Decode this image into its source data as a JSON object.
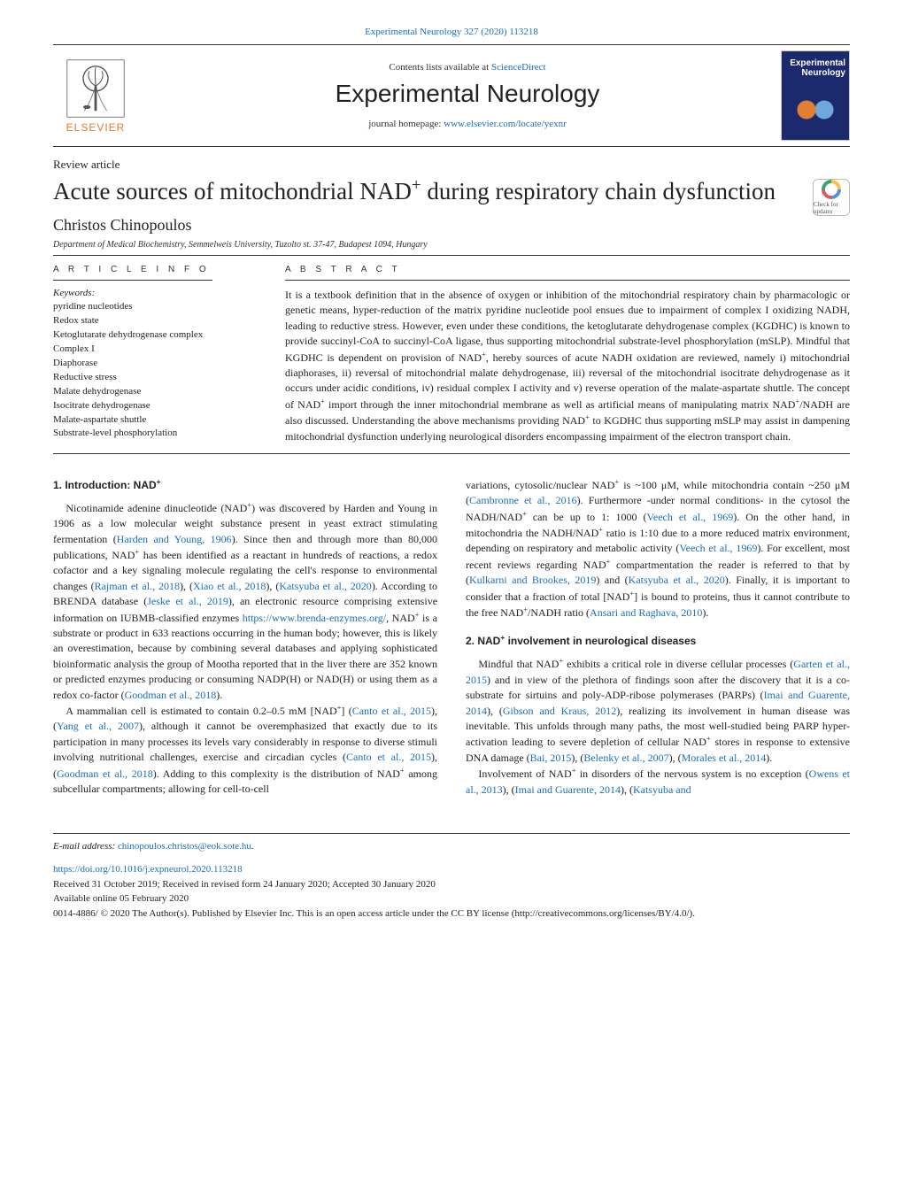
{
  "journal": {
    "header_citation": "Experimental Neurology 327 (2020) 113218",
    "contents_prefix": "Contents lists available at ",
    "contents_link_text": "ScienceDirect",
    "title": "Experimental Neurology",
    "homepage_prefix": "journal homepage: ",
    "homepage_link": "www.elsevier.com/locate/yexnr",
    "publisher_name": "ELSEVIER",
    "cover_title_line1": "Experimental",
    "cover_title_line2": "Neurology"
  },
  "article": {
    "type": "Review article",
    "title_html": "Acute sources of mitochondrial NAD<sup class='plus'>+</sup> during respiratory chain dysfunction",
    "author": "Christos Chinopoulos",
    "affiliation": "Department of Medical Biochemistry, Semmelweis University, Tuzolto st. 37-47, Budapest 1094, Hungary",
    "crossmark_label": "Check for updates"
  },
  "info": {
    "article_info_label": "A R T I C L E  I N F O",
    "abstract_label": "A B S T R A C T",
    "keywords_head": "Keywords:",
    "keywords": [
      "pyridine nucleotides",
      "Redox state",
      "Ketoglutarate dehydrogenase complex",
      "Complex I",
      "Diaphorase",
      "Reductive stress",
      "Malate dehydrogenase",
      "Isocitrate dehydrogenase",
      "Malate-aspartate shuttle",
      "Substrate-level phosphorylation"
    ],
    "abstract_html": "It is a textbook definition that in the absence of oxygen or inhibition of the mitochondrial respiratory chain by pharmacologic or genetic means, hyper-reduction of the matrix pyridine nucleotide pool ensues due to impairment of complex I oxidizing NADH, leading to reductive stress. However, even under these conditions, the ketoglutarate dehydrogenase complex (KGDHC) is known to provide succinyl-CoA to succinyl-CoA ligase, thus supporting mitochondrial substrate-level phosphorylation (mSLP). Mindful that KGDHC is dependent on provision of NAD<sup class='plus'>+</sup>, hereby sources of acute NADH oxidation are reviewed, namely i) mitochondrial diaphorases, ii) reversal of mitochondrial malate dehydrogenase, iii) reversal of the mitochondrial isocitrate dehydrogenase as it occurs under acidic conditions, iv) residual complex I activity and v) reverse operation of the malate-aspartate shuttle. The concept of NAD<sup class='plus'>+</sup> import through the inner mitochondrial membrane as well as artificial means of manipulating matrix NAD<sup class='plus'>+</sup>/NADH are also discussed. Understanding the above mechanisms providing NAD<sup class='plus'>+</sup> to KGDHC thus supporting mSLP may assist in dampening mitochondrial dysfunction underlying neurological disorders encompassing impairment of the electron transport chain."
  },
  "body": {
    "h1": "1. Introduction: NAD",
    "p1": "Nicotinamide adenine dinucleotide (NAD<sup class='plus'>+</sup>) was discovered by Harden and Young in 1906 as a low molecular weight substance present in yeast extract stimulating fermentation (<a class='ref' href='#'>Harden and Young, 1906</a>). Since then and through more than 80,000 publications, NAD<sup class='plus'>+</sup> has been identified as a reactant in hundreds of reactions, a redox cofactor and a key signaling molecule regulating the cell's response to environmental changes (<a class='ref' href='#'>Rajman et al., 2018</a>), (<a class='ref' href='#'>Xiao et al., 2018</a>), (<a class='ref' href='#'>Katsyuba et al., 2020</a>). According to BRENDA database (<a class='ref' href='#'>Jeske et al., 2019</a>), an electronic resource comprising extensive information on IUBMB-classified enzymes <a class='ref' href='#'>https://www.brenda-enzymes.org/</a>, NAD<sup class='plus'>+</sup> is a substrate or product in 633 reactions occurring in the human body; however, this is likely an overestimation, because by combining several databases and applying sophisticated bioinformatic analysis the group of Mootha reported that in the liver there are 352 known or predicted enzymes producing or consuming NADP(H) or NAD(H) or using them as a redox co-factor (<a class='ref' href='#'>Goodman et al., 2018</a>).",
    "p2": "A mammalian cell is estimated to contain 0.2–0.5 mM [NAD<sup class='plus'>+</sup>] (<a class='ref' href='#'>Canto et al., 2015</a>), (<a class='ref' href='#'>Yang et al., 2007</a>), although it cannot be overemphasized that exactly due to its participation in many processes its levels vary considerably in response to diverse stimuli involving nutritional challenges, exercise and circadian cycles (<a class='ref' href='#'>Canto et al., 2015</a>), (<a class='ref' href='#'>Goodman et al., 2018</a>). Adding to this complexity is the distribution of NAD<sup class='plus'>+</sup> among subcellular compartments; allowing for cell-to-cell",
    "p3": "variations, cytosolic/nuclear NAD<sup class='plus'>+</sup> is ~100 μM, while mitochondria contain ~250 μM (<a class='ref' href='#'>Cambronne et al., 2016</a>). Furthermore -under normal conditions- in the cytosol the NADH/NAD<sup class='plus'>+</sup> can be up to 1: 1000 (<a class='ref' href='#'>Veech et al., 1969</a>). On the other hand, in mitochondria the NADH/NAD<sup class='plus'>+</sup> ratio is 1:10 due to a more reduced matrix environment, depending on respiratory and metabolic activity (<a class='ref' href='#'>Veech et al., 1969</a>). For excellent, most recent reviews regarding NAD<sup class='plus'>+</sup> compartmentation the reader is referred to that by (<a class='ref' href='#'>Kulkarni and Brookes, 2019</a>) and (<a class='ref' href='#'>Katsyuba et al., 2020</a>). Finally, it is important to consider that a fraction of total [NAD<sup class='plus'>+</sup>] is bound to proteins, thus it cannot contribute to the free NAD<sup class='plus'>+</sup>/NADH ratio (<a class='ref' href='#'>Ansari and Raghava, 2010</a>).",
    "h2": "2. NAD",
    "h2_suffix": " involvement in neurological diseases",
    "p4": "Mindful that NAD<sup class='plus'>+</sup> exhibits a critical role in diverse cellular processes (<a class='ref' href='#'>Garten et al., 2015</a>) and in view of the plethora of findings soon after the discovery that it is a co-substrate for sirtuins and poly-ADP-ribose polymerases (PARPs) (<a class='ref' href='#'>Imai and Guarente, 2014</a>), (<a class='ref' href='#'>Gibson and Kraus, 2012</a>), realizing its involvement in human disease was inevitable. This unfolds through many paths, the most well-studied being PARP hyper-activation leading to severe depletion of cellular NAD<sup class='plus'>+</sup> stores in response to extensive DNA damage (<a class='ref' href='#'>Bai, 2015</a>), (<a class='ref' href='#'>Belenky et al., 2007</a>), (<a class='ref' href='#'>Morales et al., 2014</a>).",
    "p5": "Involvement of NAD<sup class='plus'>+</sup> in disorders of the nervous system is no exception (<a class='ref' href='#'>Owens et al., 2013</a>), (<a class='ref' href='#'>Imai and Guarente, 2014</a>), (<a class='ref' href='#'>Katsyuba and</a>"
  },
  "footer": {
    "email_label": "E-mail address: ",
    "email": "chinopoulos.christos@eok.sote.hu",
    "doi": "https://doi.org/10.1016/j.expneurol.2020.113218",
    "received": "Received 31 October 2019; Received in revised form 24 January 2020; Accepted 30 January 2020",
    "available": "Available online 05 February 2020",
    "copyright": "0014-4886/ © 2020 The Author(s). Published by Elsevier Inc. This is an open access article under the CC BY license (http://creativecommons.org/licenses/BY/4.0/)."
  },
  "colors": {
    "link": "#1a6fb8",
    "publisher": "#e77a2e",
    "cover_bg": "#1a2a6c"
  }
}
